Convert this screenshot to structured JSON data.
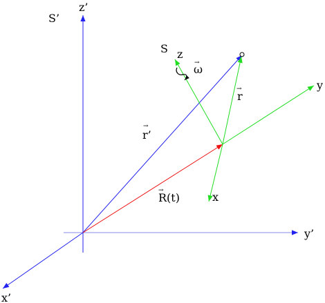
{
  "colors": {
    "fixed_axes": "#2222ee",
    "fixed_axes_light": "#8a8ae8",
    "moving_axes": "#22dd22",
    "origin_vector": "#ee1111",
    "position_vector_fixed": "#2222ee",
    "position_vector_moving": "#22dd22",
    "text": "#000000"
  },
  "labels": {
    "fixed_frame": "S’",
    "moving_frame": "S",
    "fixed_z": "z’",
    "fixed_y": "y’",
    "fixed_x": "x’",
    "moving_z": "z",
    "moving_y": "y",
    "moving_x": "x",
    "omega": "ω",
    "r_prime": "r’",
    "r": "r",
    "R_of_t": "R(t)",
    "vector_arrow": "→"
  }
}
